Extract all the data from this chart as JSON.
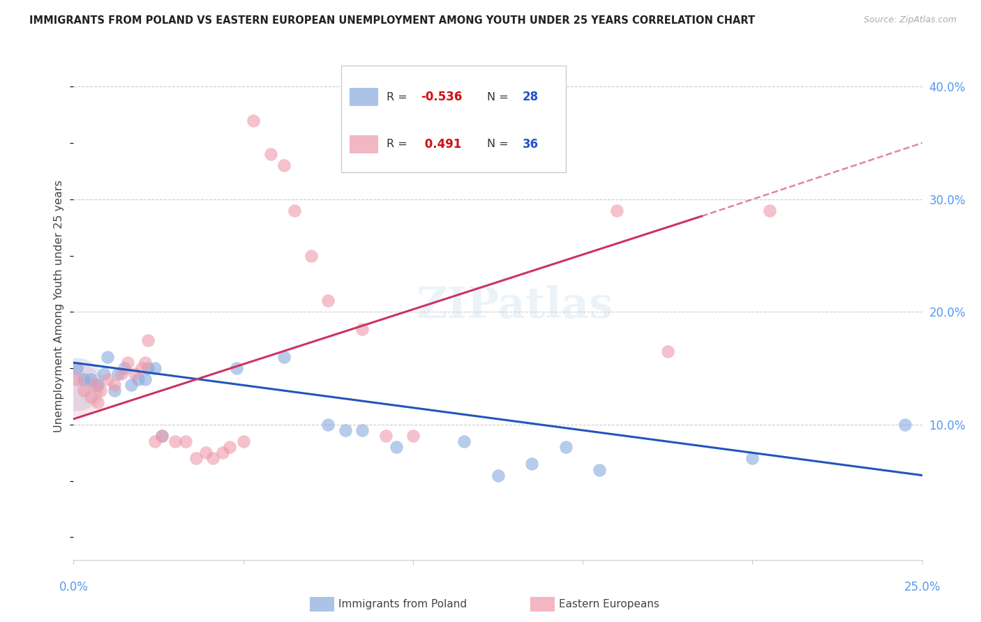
{
  "title": "IMMIGRANTS FROM POLAND VS EASTERN EUROPEAN UNEMPLOYMENT AMONG YOUTH UNDER 25 YEARS CORRELATION CHART",
  "source": "Source: ZipAtlas.com",
  "ylabel": "Unemployment Among Youth under 25 years",
  "xlim": [
    0.0,
    0.25
  ],
  "ylim": [
    -0.02,
    0.43
  ],
  "background_color": "#ffffff",
  "blue_color": "#88aadd",
  "pink_color": "#ee99aa",
  "blue_line_color": "#2255bb",
  "pink_line_color": "#cc3366",
  "r1": "-0.536",
  "n1": "28",
  "r2": "0.491",
  "n2": "36",
  "series1_label": "Immigrants from Poland",
  "series2_label": "Eastern Europeans",
  "blue_scatter": [
    [
      0.001,
      0.15
    ],
    [
      0.003,
      0.14
    ],
    [
      0.005,
      0.14
    ],
    [
      0.007,
      0.135
    ],
    [
      0.009,
      0.145
    ],
    [
      0.01,
      0.16
    ],
    [
      0.012,
      0.13
    ],
    [
      0.013,
      0.145
    ],
    [
      0.015,
      0.15
    ],
    [
      0.017,
      0.135
    ],
    [
      0.019,
      0.14
    ],
    [
      0.021,
      0.14
    ],
    [
      0.022,
      0.15
    ],
    [
      0.024,
      0.15
    ],
    [
      0.026,
      0.09
    ],
    [
      0.048,
      0.15
    ],
    [
      0.062,
      0.16
    ],
    [
      0.075,
      0.1
    ],
    [
      0.08,
      0.095
    ],
    [
      0.085,
      0.095
    ],
    [
      0.095,
      0.08
    ],
    [
      0.115,
      0.085
    ],
    [
      0.125,
      0.055
    ],
    [
      0.135,
      0.065
    ],
    [
      0.145,
      0.08
    ],
    [
      0.155,
      0.06
    ],
    [
      0.2,
      0.07
    ],
    [
      0.245,
      0.1
    ]
  ],
  "pink_scatter": [
    [
      0.001,
      0.14
    ],
    [
      0.003,
      0.13
    ],
    [
      0.005,
      0.125
    ],
    [
      0.006,
      0.135
    ],
    [
      0.007,
      0.12
    ],
    [
      0.008,
      0.13
    ],
    [
      0.01,
      0.14
    ],
    [
      0.012,
      0.135
    ],
    [
      0.014,
      0.145
    ],
    [
      0.016,
      0.155
    ],
    [
      0.018,
      0.145
    ],
    [
      0.02,
      0.15
    ],
    [
      0.021,
      0.155
    ],
    [
      0.022,
      0.175
    ],
    [
      0.024,
      0.085
    ],
    [
      0.026,
      0.09
    ],
    [
      0.03,
      0.085
    ],
    [
      0.033,
      0.085
    ],
    [
      0.036,
      0.07
    ],
    [
      0.039,
      0.075
    ],
    [
      0.041,
      0.07
    ],
    [
      0.044,
      0.075
    ],
    [
      0.046,
      0.08
    ],
    [
      0.05,
      0.085
    ],
    [
      0.053,
      0.37
    ],
    [
      0.058,
      0.34
    ],
    [
      0.062,
      0.33
    ],
    [
      0.065,
      0.29
    ],
    [
      0.07,
      0.25
    ],
    [
      0.075,
      0.21
    ],
    [
      0.085,
      0.185
    ],
    [
      0.092,
      0.09
    ],
    [
      0.1,
      0.09
    ],
    [
      0.16,
      0.29
    ],
    [
      0.175,
      0.165
    ],
    [
      0.205,
      0.29
    ]
  ],
  "blue_line_pts": [
    [
      0.0,
      0.155
    ],
    [
      0.25,
      0.055
    ]
  ],
  "pink_line_solid_pts": [
    [
      0.0,
      0.105
    ],
    [
      0.185,
      0.285
    ]
  ],
  "pink_line_dashed_pts": [
    [
      0.185,
      0.285
    ],
    [
      0.25,
      0.35
    ]
  ]
}
